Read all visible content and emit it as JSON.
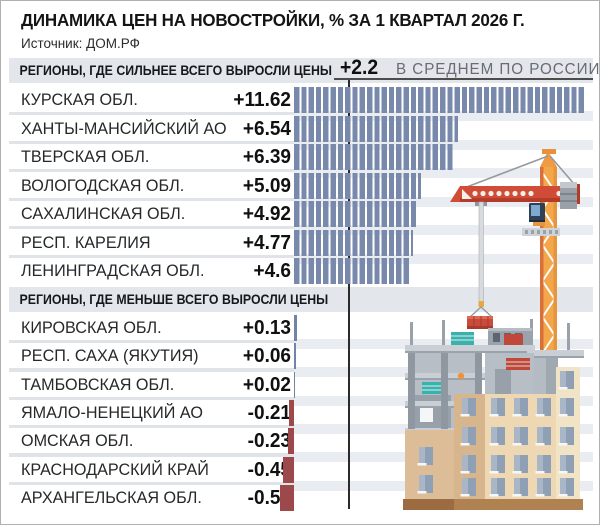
{
  "title": "ДИНАМИКА ЦЕН НА НОВОСТРОЙКИ, % ЗА 1 КВАРТАЛ 2026 Г.",
  "source": "Источник: ДОМ.РФ",
  "average": {
    "value": "+2.2",
    "label": "В СРЕДНЕМ ПО РОССИИ",
    "numeric": 2.2
  },
  "sections": [
    {
      "header": "РЕГИОНЫ, ГДЕ СИЛЬНЕЕ ВСЕГО ВЫРОСЛИ ЦЕНЫ",
      "rows": [
        {
          "region": "КУРСКАЯ ОБЛ.",
          "display": "+11.62",
          "value": 11.62
        },
        {
          "region": "ХАНТЫ-МАНСИЙСКИЙ АО",
          "display": "+6.54",
          "value": 6.54
        },
        {
          "region": "ТВЕРСКАЯ ОБЛ.",
          "display": "+6.39",
          "value": 6.39
        },
        {
          "region": "ВОЛОГОДСКАЯ ОБЛ.",
          "display": "+5.09",
          "value": 5.09
        },
        {
          "region": "САХАЛИНСКАЯ ОБЛ.",
          "display": "+4.92",
          "value": 4.92
        },
        {
          "region": "РЕСП. КАРЕЛИЯ",
          "display": "+4.77",
          "value": 4.77
        },
        {
          "region": "ЛЕНИНГРАДСКАЯ ОБЛ.",
          "display": "+4.6",
          "value": 4.6
        }
      ]
    },
    {
      "header": "РЕГИОНЫ, ГДЕ МЕНЬШЕ ВСЕГО ВЫРОСЛИ ЦЕНЫ",
      "rows": [
        {
          "region": "КИРОВСКАЯ ОБЛ.",
          "display": "+0.13",
          "value": 0.13
        },
        {
          "region": "РЕСП. САХА (ЯКУТИЯ)",
          "display": "+0.06",
          "value": 0.06
        },
        {
          "region": "ТАМБОВСКАЯ ОБЛ.",
          "display": "+0.02",
          "value": 0.02
        },
        {
          "region": "ЯМАЛО-НЕНЕЦКИЙ АО",
          "display": "-0.21",
          "value": -0.21
        },
        {
          "region": "ОМСКАЯ ОБЛ.",
          "display": "-0.23",
          "value": -0.23
        },
        {
          "region": "КРАСНОДАРСКИЙ КРАЙ",
          "display": "-0.45",
          "value": -0.45
        },
        {
          "region": "АРХАНГЕЛЬСКАЯ ОБЛ.",
          "display": "-0.57",
          "value": -0.57
        }
      ]
    }
  ],
  "chart_data": {
    "type": "bar",
    "orientation": "horizontal",
    "title": "ДИНАМИКА ЦЕН НА НОВОСТРОЙКИ, % ЗА 1 КВАРТАЛ 2026 Г.",
    "source": "ДОМ.РФ",
    "unit": "%",
    "average_russia": 2.2,
    "average_label": "+2.2 В СРЕДНЕМ ПО РОССИИ",
    "series": [
      {
        "name": "РЕГИОНЫ, ГДЕ СИЛЬНЕЕ ВСЕГО ВЫРОСЛИ ЦЕНЫ",
        "categories": [
          "КУРСКАЯ ОБЛ.",
          "ХАНТЫ-МАНСИЙСКИЙ АО",
          "ТВЕРСКАЯ ОБЛ.",
          "ВОЛОГОДСКАЯ ОБЛ.",
          "САХАЛИНСКАЯ ОБЛ.",
          "РЕСП. КАРЕЛИЯ",
          "ЛЕНИНГРАДСКАЯ ОБЛ."
        ],
        "values": [
          11.62,
          6.54,
          6.39,
          5.09,
          4.92,
          4.77,
          4.6
        ]
      },
      {
        "name": "РЕГИОНЫ, ГДЕ МЕНЬШЕ ВСЕГО ВЫРОСЛИ ЦЕНЫ",
        "categories": [
          "КИРОВСКАЯ ОБЛ.",
          "РЕСП. САХА (ЯКУТИЯ)",
          "ТАМБОВСКАЯ ОБЛ.",
          "ЯМАЛО-НЕНЕЦКИЙ АО",
          "ОМСКАЯ ОБЛ.",
          "КРАСНОДАРСКИЙ КРАЙ",
          "АРХАНГЕЛЬСКАЯ ОБЛ."
        ],
        "values": [
          0.13,
          0.06,
          0.02,
          -0.21,
          -0.23,
          -0.45,
          -0.57
        ]
      }
    ],
    "value_axis_reference_line": 2.2,
    "grid": false,
    "legend_position": "none"
  },
  "colors": {
    "bar_positive_segmented": "#7989ac",
    "bar_positive_solid": "#7084a8",
    "bar_negative": "#9d494b",
    "section_band": "#e3e6ea",
    "row_separator": "#e9ecf0",
    "average_line": "#2b2b2b",
    "crane_orange": "#f3a74a",
    "jib_red": "#d14c36",
    "building_tan": "#eed8b3",
    "building_cream": "#f1e3c6",
    "material_teal": "#3ab1ad"
  },
  "illustration": {
    "name": "construction-site",
    "elements": [
      "tower-crane",
      "hanging-load",
      "building-under-construction",
      "material-stacks"
    ]
  }
}
